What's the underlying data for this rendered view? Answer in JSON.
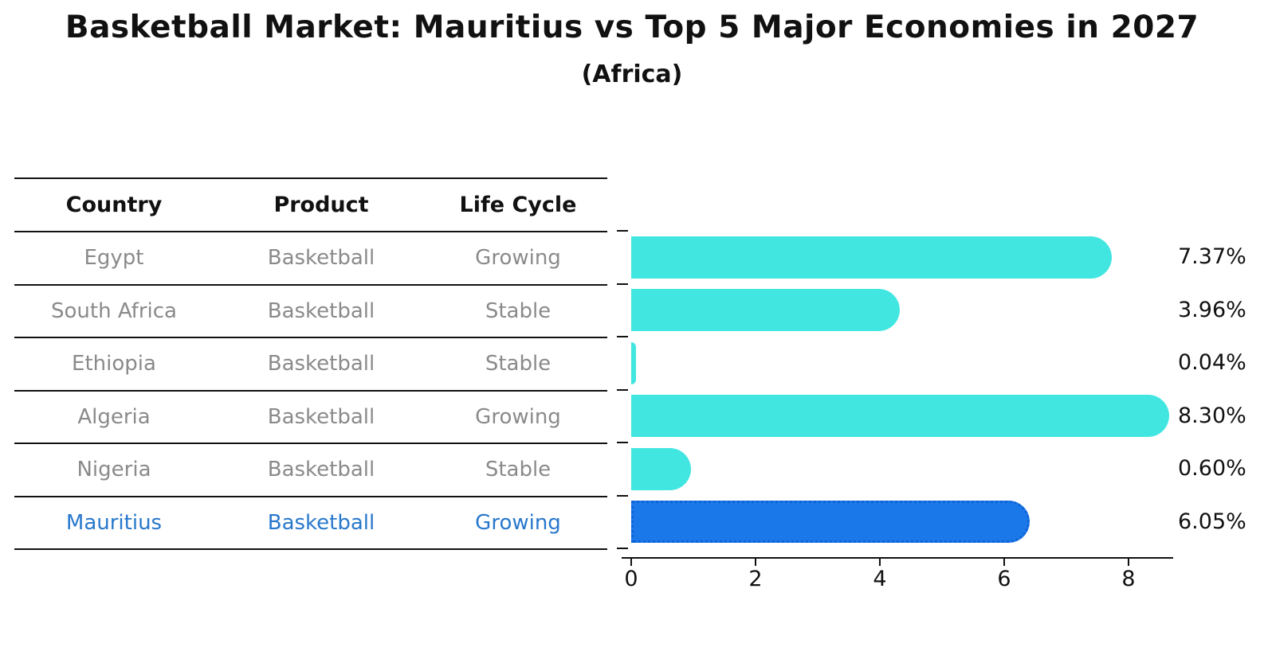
{
  "title": "Basketball Market: Mauritius vs Top 5 Major Economies in 2027",
  "subtitle": "(Africa)",
  "table": {
    "headers": [
      "Country",
      "Product",
      "Life Cycle"
    ],
    "rows": [
      {
        "country": "Egypt",
        "product": "Basketball",
        "life_cycle": "Growing",
        "highlighted": false
      },
      {
        "country": "South Africa",
        "product": "Basketball",
        "life_cycle": "Stable",
        "highlighted": false
      },
      {
        "country": "Ethiopia",
        "product": "Basketball",
        "life_cycle": "Stable",
        "highlighted": false
      },
      {
        "country": "Algeria",
        "product": "Basketball",
        "life_cycle": "Growing",
        "highlighted": false
      },
      {
        "country": "Nigeria",
        "product": "Basketball",
        "life_cycle": "Stable",
        "highlighted": false
      },
      {
        "country": "Mauritius",
        "product": "Basketball",
        "life_cycle": "Growing",
        "highlighted": true
      }
    ]
  },
  "chart_data": {
    "type": "bar",
    "orientation": "horizontal",
    "title": "Basketball Market: Mauritius vs Top 5 Major Economies in 2027",
    "subtitle": "(Africa)",
    "categories": [
      "Egypt",
      "South Africa",
      "Ethiopia",
      "Algeria",
      "Nigeria",
      "Mauritius"
    ],
    "values": [
      7.37,
      3.96,
      0.04,
      8.3,
      0.6,
      6.05
    ],
    "value_labels": [
      "7.37%",
      "3.96%",
      "0.04%",
      "8.30%",
      "0.60%",
      "6.05%"
    ],
    "highlight_index": 5,
    "xlabel": "",
    "ylabel": "",
    "xlim": [
      0,
      8.7
    ],
    "x_ticks": [
      0,
      2,
      4,
      6,
      8
    ],
    "grid": false,
    "legend": false,
    "bar_color": "#41E6E1",
    "highlight_bar_color": "#1B78E8",
    "highlight_text_color": "#2878CC"
  },
  "colors": {
    "background": "#FFFFFF",
    "text": "#111111",
    "muted_text": "#8A8A8A",
    "table_line": "#111111"
  }
}
